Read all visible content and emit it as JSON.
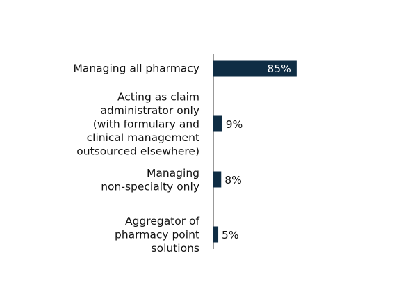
{
  "chart_data": {
    "type": "bar",
    "orientation": "horizontal",
    "categories": [
      [
        "Managing all pharmacy"
      ],
      [
        "Acting as claim",
        "administrator only",
        "(with formulary and",
        "clinical management",
        "outsourced elsewhere)"
      ],
      [
        "Managing",
        "non-specialty only"
      ],
      [
        "Aggregator of",
        "pharmacy point",
        "solutions"
      ]
    ],
    "values": [
      85,
      9,
      8,
      5
    ],
    "value_labels": [
      "85%",
      "9%",
      "8%",
      "5%"
    ],
    "xlim": [
      0,
      100
    ],
    "grid": false,
    "legend": "none",
    "title": "",
    "xlabel": "",
    "ylabel": ""
  },
  "colors": {
    "bar": "#0f2d44",
    "axis": "#333333",
    "text": "#111111",
    "label_inside": "#ffffff"
  }
}
